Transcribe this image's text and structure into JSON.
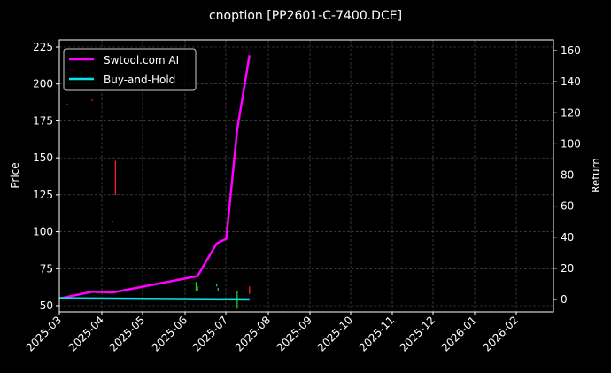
{
  "chart_data": {
    "type": "line",
    "title": "cnoption [PP2601-C-7400.DCE]",
    "ylabel": "Price",
    "ylabel_right": "Return",
    "ylim": [
      45,
      227
    ],
    "ylim_right": [
      -5,
      163
    ],
    "yticks": [
      50,
      75,
      100,
      125,
      150,
      175,
      200,
      225
    ],
    "yticks_right": [
      0,
      20,
      40,
      60,
      80,
      100,
      120,
      140,
      160
    ],
    "xticks": [
      "2025-03",
      "2025-04",
      "2025-05",
      "2025-06",
      "2025-07",
      "2025-08",
      "2025-09",
      "2025-10",
      "2025-11",
      "2025-12",
      "2026-01",
      "2026-02"
    ],
    "grid": true,
    "legend_placement": "top-left",
    "series": [
      {
        "name": "Swtool.com AI",
        "color": "#ff00ff",
        "axis": "right",
        "x": [
          0,
          24,
          39,
          101,
          115,
          122,
          130,
          139
        ],
        "values": [
          0.6,
          5,
          4.5,
          15,
          36,
          39,
          109,
          157
        ]
      },
      {
        "name": "Buy-and-Hold",
        "color": "#00e5ee",
        "axis": "right",
        "x": [
          0,
          39,
          139
        ],
        "values": [
          0.8,
          0.6,
          0
        ]
      }
    ],
    "candles": [
      {
        "x": 6,
        "low": 185.5,
        "high": 186.5,
        "color": "#ff2020"
      },
      {
        "x": 24,
        "low": 188.5,
        "high": 189.5,
        "color": "#ff2020"
      },
      {
        "x": 39,
        "low": 106.5,
        "high": 107.5,
        "color": "#ff2020"
      },
      {
        "x": 41,
        "low": 125,
        "high": 148,
        "color": "#ff2020"
      },
      {
        "x": 100,
        "low": 60,
        "high": 66,
        "color": "#22cc22"
      },
      {
        "x": 101,
        "low": 60,
        "high": 63,
        "color": "#22cc22"
      },
      {
        "x": 115,
        "low": 63,
        "high": 65,
        "color": "#22cc22"
      },
      {
        "x": 116,
        "low": 60,
        "high": 62,
        "color": "#22cc22"
      },
      {
        "x": 130,
        "low": 48,
        "high": 60,
        "color": "#22cc22"
      },
      {
        "x": 139,
        "low": 58,
        "high": 63,
        "color": "#ff2020"
      }
    ],
    "x_unit": "days since 2025-03-01"
  }
}
